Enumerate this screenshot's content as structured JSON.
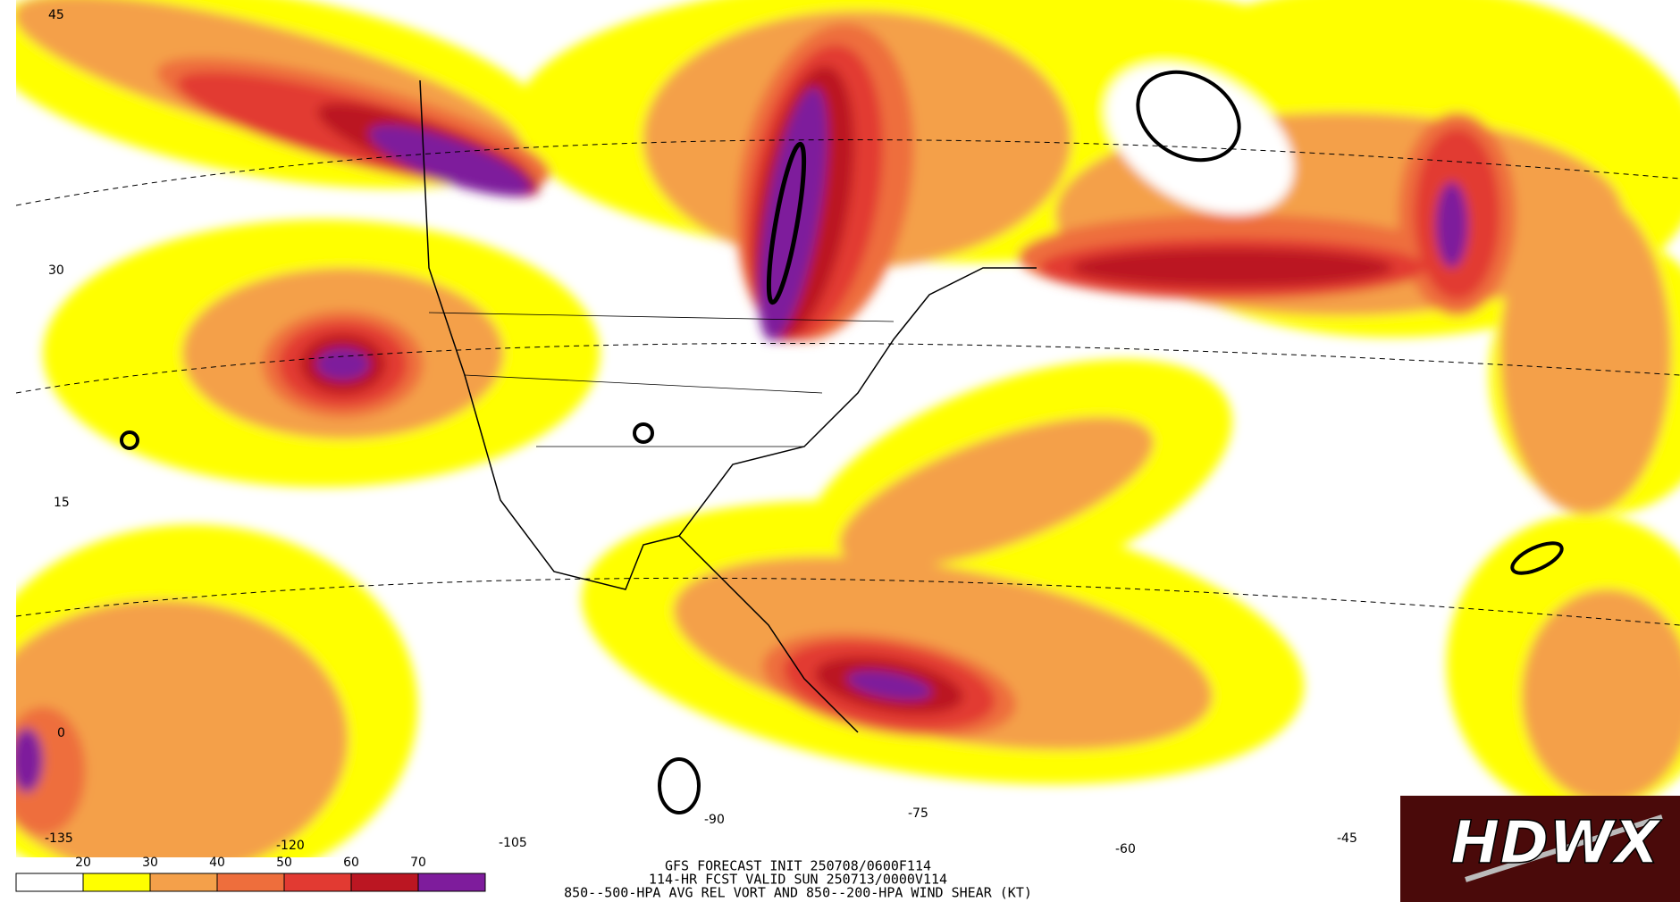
{
  "map": {
    "latitude_labels": [
      "45",
      "30",
      "15",
      "0"
    ],
    "longitude_labels": [
      "-135",
      "-120",
      "-105",
      "-90",
      "-75",
      "-60",
      "-45"
    ],
    "colorbar": {
      "labels": [
        "20",
        "30",
        "40",
        "50",
        "60",
        "70"
      ],
      "colors": [
        "#ffffff",
        "#ffff00",
        "#f4a04a",
        "#ee6e3c",
        "#e23a32",
        "#bb1622",
        "#7e1c9c"
      ]
    },
    "title_lines": [
      "GFS FORECAST INIT 250708/0600F114",
      "114-HR FCST VALID SUN 250713/0000V114",
      "850--500-HPA AVG REL VORT AND 850--200-HPA WIND SHEAR (KT)"
    ],
    "logo": "HDWX"
  }
}
